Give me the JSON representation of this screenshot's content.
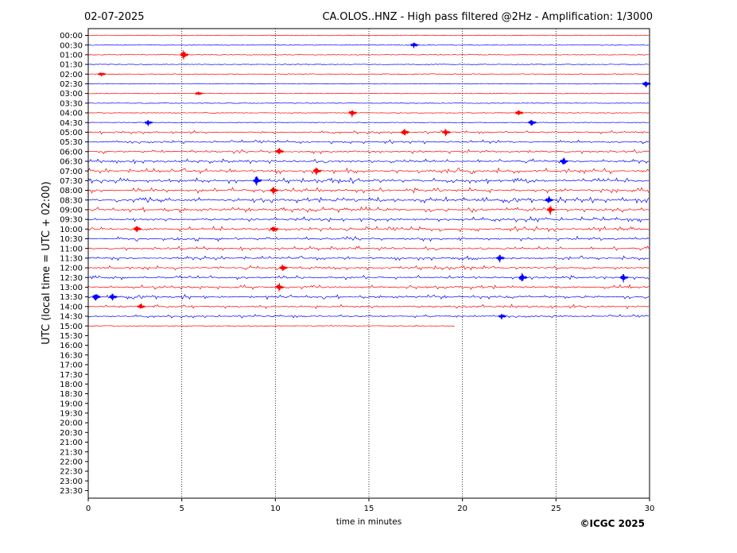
{
  "header": {
    "date": "02-07-2025",
    "title": "CA.OLOS..HNZ - High pass filtered @2Hz - Amplification: 1/3000"
  },
  "footer": {
    "copyright": "©ICGC 2025"
  },
  "chart_data": {
    "type": "line",
    "title": "CA.OLOS..HNZ - High pass filtered @2Hz - Amplification: 1/3000",
    "xlabel": "time in minutes",
    "ylabel": "UTC (local time = UTC + 02:00)",
    "xlim": [
      0,
      30
    ],
    "x_ticks": [
      "0",
      "5",
      "10",
      "15",
      "20",
      "25",
      "30"
    ],
    "vertical_gridlines_at": [
      5,
      10,
      15,
      20,
      25
    ],
    "row_labels": [
      "00:00",
      "00:30",
      "01:00",
      "01:30",
      "02:00",
      "02:30",
      "03:00",
      "03:30",
      "04:00",
      "04:30",
      "05:00",
      "05:30",
      "06:00",
      "06:30",
      "07:00",
      "07:30",
      "08:00",
      "08:30",
      "09:00",
      "09:30",
      "10:00",
      "10:30",
      "11:00",
      "11:30",
      "12:00",
      "12:30",
      "13:00",
      "13:30",
      "14:00",
      "14:30",
      "15:00",
      "15:30",
      "16:00",
      "16:30",
      "17:00",
      "17:30",
      "18:00",
      "18:30",
      "19:00",
      "19:30",
      "20:00",
      "20:30",
      "21:00",
      "21:30",
      "22:00",
      "22:30",
      "23:00",
      "23:30"
    ],
    "trace_colors": [
      "#ff0000",
      "#0000ff"
    ],
    "traces_recorded_rows": 31,
    "last_row_end_minute": 19.6,
    "activity_level": [
      0.05,
      0.05,
      0.05,
      0.05,
      0.05,
      0.05,
      0.05,
      0.05,
      0.05,
      0.1,
      0.45,
      0.5,
      0.55,
      0.6,
      0.7,
      0.7,
      0.7,
      0.75,
      0.7,
      0.65,
      0.65,
      0.6,
      0.55,
      0.55,
      0.55,
      0.55,
      0.6,
      0.6,
      0.55,
      0.45,
      0.2
    ],
    "events": [
      {
        "row": "00:30",
        "minute": 17.4,
        "amplitude": 0.35
      },
      {
        "row": "01:00",
        "minute": 5.1,
        "amplitude": 0.6
      },
      {
        "row": "02:00",
        "minute": 0.7,
        "amplitude": 0.3
      },
      {
        "row": "02:30",
        "minute": 29.8,
        "amplitude": 0.5
      },
      {
        "row": "03:00",
        "minute": 5.9,
        "amplitude": 0.25
      },
      {
        "row": "04:00",
        "minute": 14.1,
        "amplitude": 0.5
      },
      {
        "row": "04:00",
        "minute": 23.0,
        "amplitude": 0.45
      },
      {
        "row": "04:30",
        "minute": 3.2,
        "amplitude": 0.4
      },
      {
        "row": "04:30",
        "minute": 23.7,
        "amplitude": 0.5
      },
      {
        "row": "05:00",
        "minute": 16.9,
        "amplitude": 0.6
      },
      {
        "row": "05:00",
        "minute": 19.1,
        "amplitude": 0.5
      },
      {
        "row": "06:00",
        "minute": 10.2,
        "amplitude": 0.5
      },
      {
        "row": "06:30",
        "minute": 25.4,
        "amplitude": 0.55
      },
      {
        "row": "07:00",
        "minute": 12.2,
        "amplitude": 0.55
      },
      {
        "row": "07:30",
        "minute": 9.0,
        "amplitude": 0.7
      },
      {
        "row": "08:00",
        "minute": 9.9,
        "amplitude": 0.5
      },
      {
        "row": "08:30",
        "minute": 24.6,
        "amplitude": 0.55
      },
      {
        "row": "09:00",
        "minute": 24.7,
        "amplitude": 0.6
      },
      {
        "row": "10:00",
        "minute": 2.6,
        "amplitude": 0.45
      },
      {
        "row": "10:00",
        "minute": 9.9,
        "amplitude": 0.5
      },
      {
        "row": "11:30",
        "minute": 22.0,
        "amplitude": 0.5
      },
      {
        "row": "12:00",
        "minute": 10.4,
        "amplitude": 0.5
      },
      {
        "row": "12:30",
        "minute": 23.2,
        "amplitude": 0.6
      },
      {
        "row": "12:30",
        "minute": 28.6,
        "amplitude": 0.55
      },
      {
        "row": "13:00",
        "minute": 10.2,
        "amplitude": 0.55
      },
      {
        "row": "13:30",
        "minute": 0.4,
        "amplitude": 0.55
      },
      {
        "row": "13:30",
        "minute": 1.3,
        "amplitude": 0.5
      },
      {
        "row": "14:00",
        "minute": 2.8,
        "amplitude": 0.45
      },
      {
        "row": "14:30",
        "minute": 22.1,
        "amplitude": 0.35
      }
    ]
  }
}
